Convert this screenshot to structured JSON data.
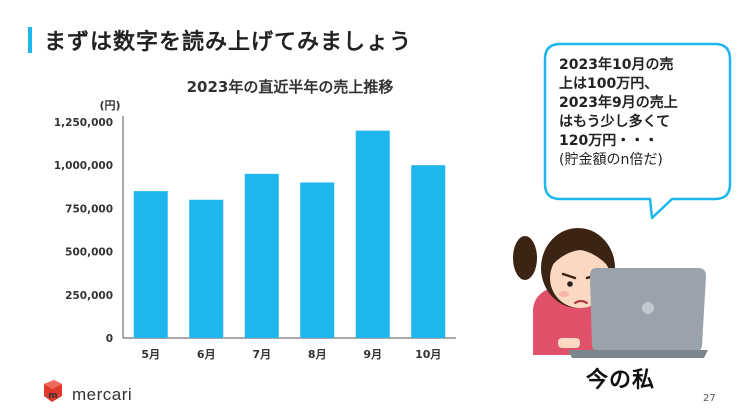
{
  "slide": {
    "heading": "まずは数字を読み上げてみましょう",
    "page_number": "27",
    "accent_color": "#1fb6ee"
  },
  "chart_data": {
    "type": "bar",
    "title": "2023年の直近半年の売上推移",
    "unit_label": "(円)",
    "categories": [
      "5月",
      "6月",
      "7月",
      "8月",
      "9月",
      "10月"
    ],
    "values": [
      850000,
      800000,
      950000,
      900000,
      1200000,
      1000000
    ],
    "yticks": [
      "0",
      "250,000",
      "500,000",
      "750,000",
      "1,000,000",
      "1,250,000"
    ],
    "ylim": [
      0,
      1250000
    ],
    "bar_color": "#1fb6ee",
    "grid": false,
    "legend": "none"
  },
  "speech_bubble": {
    "lines": [
      "2023年10月の売",
      "上は100万円、",
      "2023年9月の売上",
      "はもう少し多くて",
      "120万円・・・",
      "(貯金額のn倍だ)"
    ]
  },
  "illustration": {
    "caption": "今の私"
  },
  "logo": {
    "text": "mercari",
    "icon": "mercari-cube-logo",
    "color": "#e03a2e"
  }
}
